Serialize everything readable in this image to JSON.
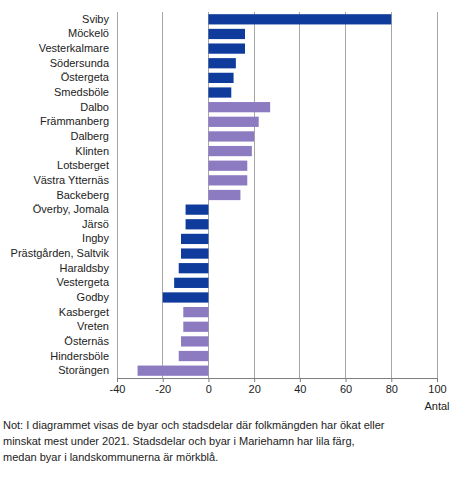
{
  "chart_data": {
    "type": "bar",
    "orientation": "horizontal",
    "categories": [
      "Sviby",
      "Möckelö",
      "Vesterkalmare",
      "Södersunda",
      "Östergeta",
      "Smedsböle",
      "Dalbo",
      "Främmanberg",
      "Dalberg",
      "Klinten",
      "Lotsberget",
      "Västra Ytternäs",
      "Backeberg",
      "Överby, Jomala",
      "Järsö",
      "Ingby",
      "Prästgården, Saltvik",
      "Haraldsby",
      "Vestergeta",
      "Godby",
      "Kasberget",
      "Vreten",
      "Östernäs",
      "Hindersböle",
      "Storängen"
    ],
    "values": [
      80,
      16,
      16,
      12,
      11,
      10,
      27,
      22,
      20,
      19,
      17,
      17,
      14,
      -10,
      -10,
      -12,
      -12,
      -13,
      -15,
      -20,
      -11,
      -11,
      -12,
      -13,
      -31
    ],
    "colors": [
      "#0f3c9c",
      "#0f3c9c",
      "#0f3c9c",
      "#0f3c9c",
      "#0f3c9c",
      "#0f3c9c",
      "#8d7bc1",
      "#8d7bc1",
      "#8d7bc1",
      "#8d7bc1",
      "#8d7bc1",
      "#8d7bc1",
      "#8d7bc1",
      "#0f3c9c",
      "#0f3c9c",
      "#0f3c9c",
      "#0f3c9c",
      "#0f3c9c",
      "#0f3c9c",
      "#0f3c9c",
      "#8d7bc1",
      "#8d7bc1",
      "#8d7bc1",
      "#8d7bc1",
      "#8d7bc1"
    ],
    "xlim": [
      -40,
      100
    ],
    "xticks": [
      -40,
      -20,
      0,
      20,
      40,
      60,
      80,
      100
    ],
    "grid": true,
    "xlabel": "Antal",
    "annotations": [
      "Not: I diagrammet visas de byar och stadsdelar där folkmängden har ökat eller",
      "minskat mest under 2021. Stadsdelar och byar i Mariehamn har lila färg,",
      "medan byar i landskommunerna är mörkblå."
    ]
  }
}
